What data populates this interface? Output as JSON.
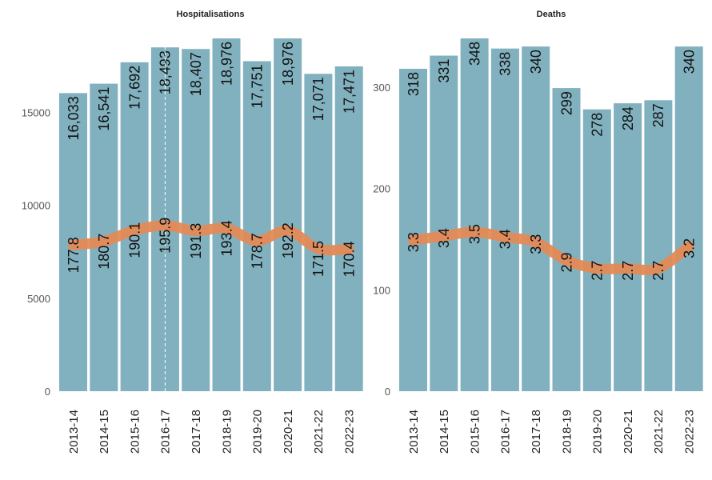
{
  "chart_data": [
    {
      "type": "bar",
      "title": "Hospitalisations",
      "categories": [
        "2013-14",
        "2014-15",
        "2015-16",
        "2016-17",
        "2017-18",
        "2018-19",
        "2019-20",
        "2020-21",
        "2021-22",
        "2022-23"
      ],
      "values": [
        16033,
        16541,
        17692,
        18493,
        18407,
        18976,
        17751,
        18976,
        17071,
        17471
      ],
      "value_labels": [
        "16,033",
        "16,541",
        "17,692",
        "18,493",
        "18,407",
        "18,976",
        "17,751",
        "18,976",
        "17,071",
        "17,471"
      ],
      "ylim": [
        0,
        18976
      ],
      "yticks": [
        0,
        5000,
        10000,
        15000
      ],
      "ytick_labels": [
        "0",
        "5000",
        "10000",
        "15000"
      ],
      "rate_line": {
        "values": [
          177.8,
          180.7,
          190.1,
          195.9,
          191.3,
          193.4,
          178.7,
          192.2,
          171.5,
          170.4
        ],
        "labels": [
          "177.8",
          "180.7",
          "190.1",
          "195.9",
          "191.3",
          "193.4",
          "178.7",
          "192.2",
          "171.5",
          "170.4"
        ],
        "plot_values": [
          7860,
          8060,
          8660,
          8920,
          8620,
          8760,
          8080,
          8640,
          7660,
          7640
        ]
      },
      "reference_line_category": "2016-17",
      "bar_color": "#81b1bf",
      "line_color": "#e48a56"
    },
    {
      "type": "bar",
      "title": "Deaths",
      "categories": [
        "2013-14",
        "2014-15",
        "2015-16",
        "2016-17",
        "2017-18",
        "2018-19",
        "2019-20",
        "2020-21",
        "2021-22",
        "2022-23"
      ],
      "values": [
        318,
        331,
        348,
        338,
        340,
        299,
        278,
        284,
        287,
        340
      ],
      "value_labels": [
        "318",
        "331",
        "348",
        "338",
        "340",
        "299",
        "278",
        "284",
        "287",
        "340"
      ],
      "ylim": [
        0,
        348
      ],
      "yticks": [
        0,
        100,
        200,
        300
      ],
      "ytick_labels": [
        "0",
        "100",
        "200",
        "300"
      ],
      "rate_line": {
        "values": [
          3.3,
          3.4,
          3.5,
          3.4,
          3.3,
          2.9,
          2.7,
          2.7,
          2.7,
          3.2
        ],
        "labels": [
          "3.3",
          "3.4",
          "3.5",
          "3.4",
          "3.3",
          "2.9",
          "2.7",
          "2.7",
          "2.7",
          "3.2"
        ],
        "plot_values": [
          149,
          153,
          157,
          152,
          147,
          129,
          121,
          121,
          121,
          143
        ]
      },
      "bar_color": "#81b1bf",
      "line_color": "#e48a56"
    }
  ]
}
